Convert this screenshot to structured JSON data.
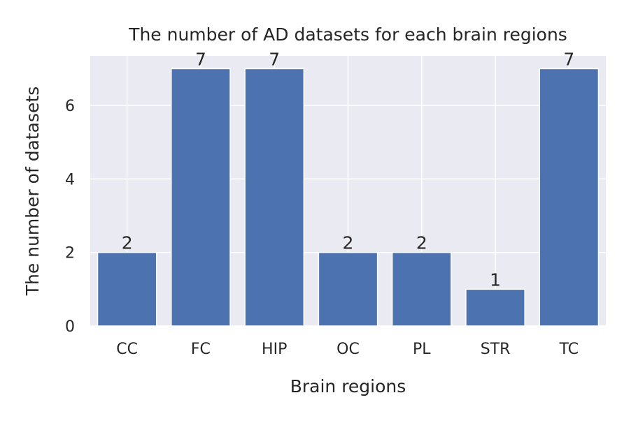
{
  "chart_data": {
    "type": "bar",
    "title": "The number of AD datasets for each brain regions",
    "xlabel": "Brain regions",
    "ylabel": "The number of datasets",
    "categories": [
      "CC",
      "FC",
      "HIP",
      "OC",
      "PL",
      "STR",
      "TC"
    ],
    "values": [
      2,
      7,
      7,
      2,
      2,
      1,
      7
    ],
    "ylim": [
      0,
      7.35
    ],
    "yticks": [
      0,
      2,
      4,
      6
    ],
    "grid": true,
    "colors": {
      "bar": "#4c72b0",
      "plot_background": "#eaeaf2",
      "grid": "#ffffff",
      "text": "#262626"
    }
  }
}
